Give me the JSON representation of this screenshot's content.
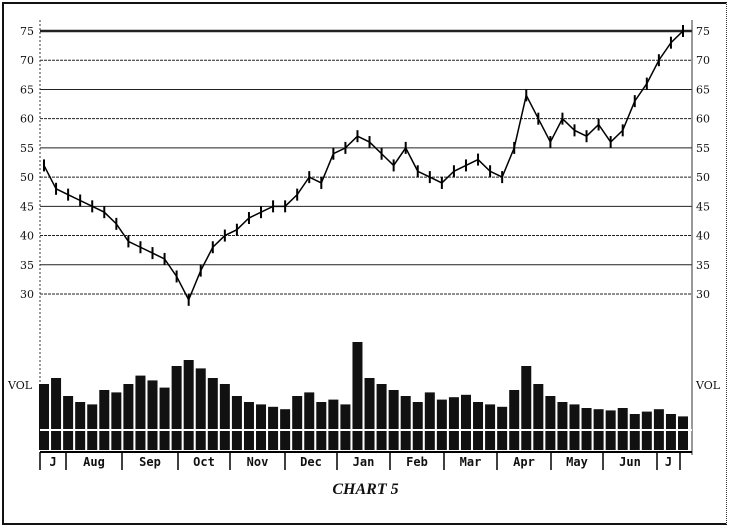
{
  "chart_data": {
    "type": "bar",
    "title": "CHART 5",
    "price_axis": {
      "ticks": [
        "75",
        "70",
        "65",
        "60",
        "55",
        "50",
        "45",
        "40",
        "35",
        "30"
      ],
      "ylim": [
        28,
        76
      ],
      "grid": true,
      "sides": [
        "left",
        "right"
      ]
    },
    "volume_axis": {
      "label": "VOL",
      "sides": [
        "left",
        "right"
      ]
    },
    "months": [
      "J",
      "Aug",
      "Sep",
      "Oct",
      "Nov",
      "Dec",
      "Jan",
      "Feb",
      "Mar",
      "Apr",
      "May",
      "Jun",
      "J"
    ],
    "price": [
      52,
      48,
      47,
      46,
      45,
      44,
      42,
      39,
      38,
      37,
      36,
      33,
      29,
      34,
      38,
      40,
      41,
      43,
      44,
      45,
      45,
      47,
      50,
      49,
      54,
      55,
      57,
      56,
      54,
      52,
      55,
      51,
      50,
      49,
      51,
      52,
      53,
      51,
      50,
      55,
      64,
      60,
      56,
      60,
      58,
      57,
      59,
      56,
      58,
      63,
      66,
      70,
      73,
      75
    ],
    "volume": [
      55,
      60,
      45,
      40,
      38,
      50,
      48,
      55,
      62,
      58,
      52,
      70,
      75,
      68,
      60,
      55,
      45,
      40,
      38,
      36,
      34,
      45,
      48,
      40,
      42,
      38,
      90,
      60,
      55,
      50,
      45,
      40,
      48,
      42,
      44,
      46,
      40,
      38,
      36,
      50,
      70,
      55,
      45,
      40,
      38,
      35,
      34,
      33,
      35,
      30,
      32,
      34,
      30,
      28
    ],
    "volume_ylim": [
      0,
      100
    ]
  }
}
